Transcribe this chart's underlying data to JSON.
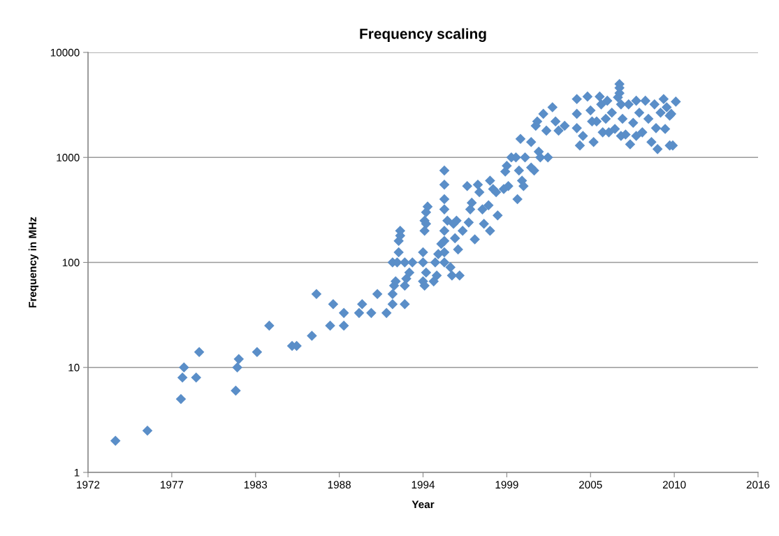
{
  "chart_data": {
    "type": "scatter",
    "title": "Frequency scaling",
    "xlabel": "Year",
    "ylabel": "Frequency in MHz",
    "log": "y",
    "grid": "y",
    "marker": "diamond",
    "xlim": [
      1972,
      2016
    ],
    "ylim": [
      1,
      10000
    ],
    "xticks": [
      {
        "value": 1972,
        "label": "1972"
      },
      {
        "value": 1977.5,
        "label": "1977"
      },
      {
        "value": 1983,
        "label": "1983"
      },
      {
        "value": 1988.5,
        "label": "1988"
      },
      {
        "value": 1994,
        "label": "1994"
      },
      {
        "value": 1999.5,
        "label": "1999"
      },
      {
        "value": 2005,
        "label": "2005"
      },
      {
        "value": 2010.5,
        "label": "2010"
      },
      {
        "value": 2016,
        "label": "2016"
      }
    ],
    "yticks": [
      1,
      10,
      100,
      1000,
      10000
    ],
    "series": [
      {
        "color": "#5a8ec8",
        "x": [
          1973.8,
          1975.9,
          1978.1,
          1978.2,
          1978.3,
          1979.1,
          1979.3,
          1981.7,
          1981.8,
          1981.9,
          1983.1,
          1983.9,
          1985.4,
          1985.7,
          1986.7,
          1987.0,
          1987.9,
          1988.1,
          1988.8,
          1988.8,
          1989.8,
          1990.0,
          1990.6,
          1991.0,
          1991.6,
          1992.0,
          1992.0,
          1992.0,
          1992.1,
          1992.2,
          1992.3,
          1992.4,
          1992.4,
          1992.5,
          1992.5,
          1992.8,
          1992.8,
          1992.8,
          1992.9,
          1993.1,
          1993.3,
          1994.0,
          1994.0,
          1994.0,
          1994.1,
          1994.2,
          1994.1,
          1994.1,
          1994.2,
          1994.3,
          1994.2,
          1994.7,
          1994.9,
          1994.8,
          1995.0,
          1995.2,
          1995.4,
          1995.4,
          1995.4,
          1995.4,
          1995.4,
          1995.4,
          1995.4,
          1995.4,
          1995.6,
          1995.8,
          1995.9,
          1996.0,
          1996.1,
          1996.2,
          1996.3,
          1996.4,
          1996.6,
          1996.9,
          1997.0,
          1997.1,
          1997.2,
          1997.4,
          1997.6,
          1997.7,
          1997.9,
          1998.0,
          1998.3,
          1998.4,
          1998.4,
          1998.6,
          1998.8,
          1998.9,
          1999.3,
          1999.4,
          1999.5,
          1999.6,
          1999.8,
          2000.1,
          2000.2,
          2000.3,
          2000.4,
          2000.5,
          2000.6,
          2000.7,
          2001.1,
          2001.1,
          2001.3,
          2001.4,
          2001.5,
          2001.6,
          2001.7,
          2001.9,
          2002.1,
          2002.2,
          2002.5,
          2002.7,
          2002.9,
          2003.3,
          2004.1,
          2004.1,
          2004.1,
          2004.3,
          2004.5,
          2004.8,
          2005.0,
          2005.1,
          2005.2,
          2005.4,
          2005.6,
          2005.7,
          2005.8,
          2006.0,
          2006.1,
          2006.2,
          2006.4,
          2006.6,
          2006.8,
          2006.9,
          2006.9,
          2006.9,
          2007.0,
          2007.0,
          2007.1,
          2007.3,
          2007.5,
          2007.6,
          2007.8,
          2008.0,
          2008.0,
          2008.2,
          2008.4,
          2008.6,
          2008.8,
          2009.0,
          2009.2,
          2009.3,
          2009.4,
          2009.6,
          2009.8,
          2009.9,
          2010.0,
          2010.2,
          2010.2,
          2010.3,
          2010.4,
          2010.6
        ],
        "values": [
          2,
          2.5,
          5,
          8,
          10,
          8,
          14,
          6,
          10,
          12,
          14,
          25,
          16,
          16,
          20,
          50,
          25,
          40,
          33,
          25,
          33,
          40,
          33,
          50,
          33,
          40,
          50,
          100,
          60,
          66,
          100,
          125,
          160,
          200,
          180,
          100,
          40,
          60,
          70,
          80,
          100,
          125,
          100,
          66,
          60,
          80,
          200,
          250,
          300,
          340,
          233,
          66,
          75,
          100,
          120,
          150,
          750,
          550,
          400,
          320,
          200,
          160,
          125,
          100,
          250,
          90,
          75,
          233,
          170,
          250,
          133,
          75,
          200,
          533,
          240,
          320,
          370,
          166,
          550,
          466,
          320,
          233,
          350,
          200,
          600,
          500,
          466,
          280,
          500,
          733,
          833,
          533,
          1000,
          1000,
          400,
          750,
          1500,
          600,
          533,
          1000,
          1400,
          800,
          750,
          2000,
          2200,
          1133,
          1000,
          2600,
          1800,
          1000,
          3000,
          2200,
          1800,
          2000,
          3600,
          2600,
          1900,
          1300,
          1600,
          3800,
          2800,
          2200,
          1400,
          2200,
          3800,
          3200,
          1733,
          2333,
          3466,
          1733,
          2666,
          1866,
          3733,
          5000,
          4600,
          4100,
          3200,
          1600,
          2333,
          1650,
          3200,
          1333,
          2133,
          3466,
          1600,
          2666,
          1733,
          3466,
          2333,
          1400,
          3200,
          1900,
          1200,
          2666,
          3600,
          1866,
          3000,
          2500,
          1300,
          2600,
          1300,
          3400
        ]
      }
    ]
  }
}
